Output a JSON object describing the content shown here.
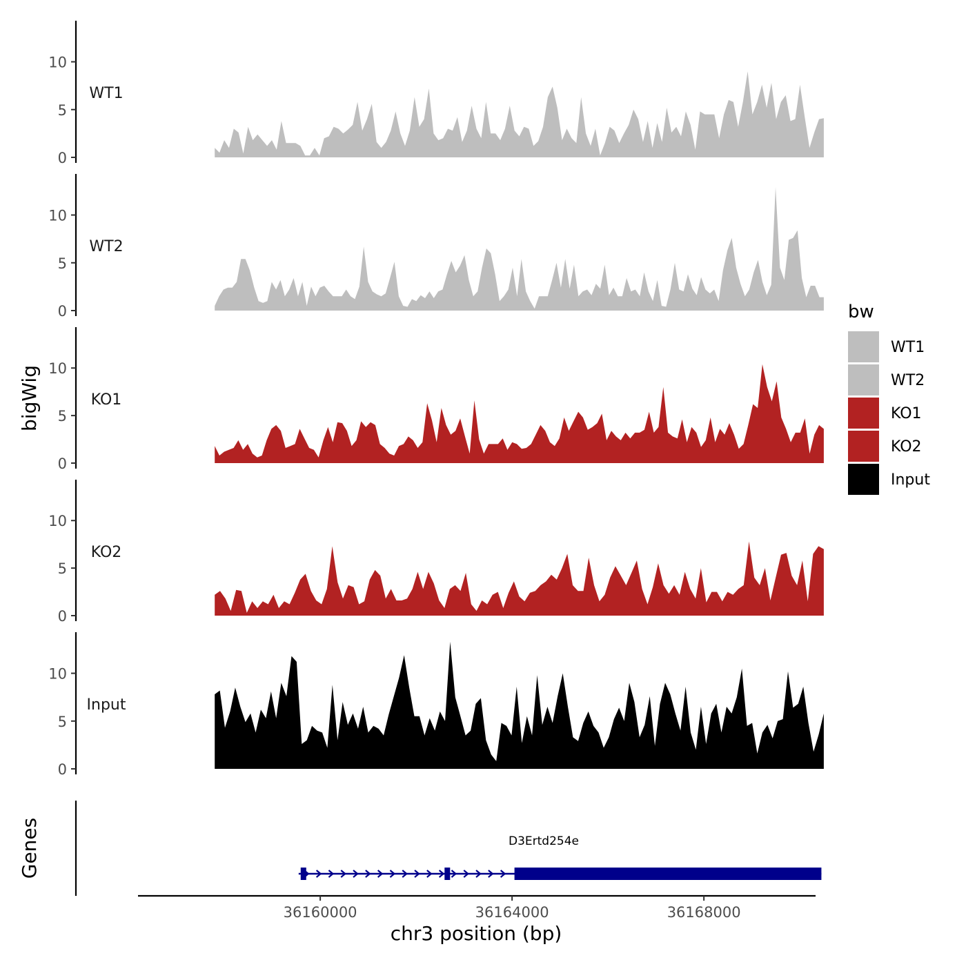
{
  "chart_data": {
    "type": "area",
    "title": "",
    "ylabel": "bigWig",
    "xlabel": "chr3 position (bp)",
    "xlim": [
      36156200,
      36170300
    ],
    "x_start": 36157800,
    "x_end": 36170500,
    "ylim": [
      0,
      14.3
    ],
    "y_ticks": [
      0,
      5,
      10
    ],
    "y_tick_labels": [
      "0",
      "5",
      "10"
    ],
    "x_ticks": [
      36160000,
      36164000,
      36168000
    ],
    "x_tick_labels": [
      "36160000",
      "36164000",
      "36168000"
    ],
    "legend": {
      "title": "bw",
      "placement": "right",
      "entries": [
        {
          "label": "WT1",
          "color": "#bebebe"
        },
        {
          "label": "WT2",
          "color": "#bebebe"
        },
        {
          "label": "KO1",
          "color": "#b22222"
        },
        {
          "label": "KO2",
          "color": "#b22222"
        },
        {
          "label": "Input",
          "color": "#000000"
        }
      ]
    },
    "series": [
      {
        "name": "WT1",
        "color": "#bebebe",
        "values": [
          1,
          0.5,
          1.8,
          1,
          3,
          2.6,
          0.4,
          3.2,
          1.8,
          2.4,
          1.8,
          1.2,
          1.8,
          0.8,
          3.8,
          1.5,
          1.5,
          1.5,
          1.2,
          0.2,
          0.2,
          1,
          0.2,
          2,
          2.2,
          3.2,
          3,
          2.5,
          2.9,
          3.4,
          5.8,
          2.8,
          4,
          5.6,
          1.6,
          1,
          1.6,
          2.8,
          4.8,
          2.5,
          1.2,
          2.8,
          6.3,
          3.2,
          4,
          7.2,
          2.5,
          1.8,
          2,
          3,
          2.8,
          4.2,
          1.6,
          2.8,
          5.4,
          3,
          2,
          5.8,
          2.5,
          2.5,
          1.8,
          3,
          5.4,
          2.8,
          2.2,
          3.2,
          3,
          1.2,
          1.7,
          3.2,
          6.3,
          7.4,
          5.2,
          1.8,
          3,
          2,
          1.5,
          6.3,
          2.5,
          1.2,
          3,
          0.2,
          1.5,
          3.2,
          2.8,
          1.5,
          2.5,
          3.4,
          5,
          4,
          1.6,
          3.8,
          1,
          3.6,
          1.6,
          5.2,
          2.6,
          3.2,
          2.2,
          4.8,
          3.4,
          0.8,
          4.8,
          4.5,
          4.5,
          4.5,
          2,
          4.5,
          6,
          5.8,
          3.2,
          5.8,
          9,
          4.5,
          5.8,
          7.6,
          5.2,
          7.8,
          4,
          5.8,
          6.5,
          3.8,
          4,
          7.6,
          4.2,
          1,
          2.6,
          4,
          4.1
        ]
      },
      {
        "name": "WT2",
        "color": "#bebebe",
        "values": [
          0.5,
          1.5,
          2.2,
          2.4,
          2.4,
          3,
          5.4,
          5.4,
          4.2,
          2.4,
          1,
          0.8,
          1,
          3,
          2.2,
          3.2,
          1.5,
          2.2,
          3.4,
          1.5,
          3,
          0.5,
          2.5,
          1.5,
          2.4,
          2.6,
          2,
          1.5,
          1.5,
          1.5,
          2.2,
          1.5,
          1.2,
          2.5,
          6.7,
          3,
          2,
          1.7,
          1.5,
          1.8,
          3.4,
          5.1,
          1.5,
          0.5,
          0.4,
          1.2,
          1,
          1.6,
          1.3,
          2,
          1.3,
          2,
          2.2,
          3.8,
          5.2,
          4,
          4.7,
          5.8,
          3.2,
          1.5,
          2,
          4.5,
          6.5,
          6,
          3.8,
          1,
          1.5,
          2.2,
          4.5,
          1.5,
          5.4,
          2,
          1,
          0.2,
          1.5,
          1.5,
          1.5,
          3.2,
          5,
          2.4,
          5.4,
          2.3,
          4.8,
          1.5,
          2,
          2.2,
          1.6,
          2.8,
          2.3,
          4.8,
          1.6,
          2.4,
          1.5,
          1.5,
          3.4,
          2,
          2.2,
          1.5,
          4,
          2,
          1,
          3.2,
          0.5,
          0.4,
          2.2,
          5,
          2.2,
          2,
          3.8,
          2.3,
          1.6,
          3.5,
          2.2,
          1.8,
          2.2,
          1,
          4.2,
          6.3,
          7.6,
          4.5,
          2.8,
          1.5,
          2.2,
          4,
          5.3,
          3,
          1.6,
          2.7,
          12.9,
          4.5,
          3.2,
          7.4,
          7.6,
          8.4,
          3.4,
          1.4,
          2.6,
          2.6,
          1.4,
          1.4
        ]
      },
      {
        "name": "KO1",
        "color": "#b22222",
        "values": [
          1.8,
          0.8,
          1.2,
          1.4,
          1.6,
          2.4,
          1.4,
          2,
          1,
          0.6,
          0.8,
          2.4,
          3.6,
          4,
          3.4,
          1.6,
          1.8,
          2,
          3.6,
          2.6,
          1.6,
          1.4,
          0.6,
          2.4,
          3.8,
          2.2,
          4.3,
          4.2,
          3.4,
          1.8,
          2.4,
          4.4,
          3.8,
          4.3,
          4,
          2,
          1.6,
          1,
          0.8,
          1.8,
          2,
          2.8,
          2.4,
          1.6,
          2.2,
          6.3,
          4.5,
          2.2,
          5.8,
          4,
          3,
          3.4,
          4.7,
          2.8,
          1,
          6.6,
          2.5,
          1,
          2,
          2,
          2,
          2.6,
          1.4,
          2.2,
          2,
          1.5,
          1.6,
          2,
          3,
          4,
          3.4,
          2.2,
          1.8,
          2.6,
          4.8,
          3.4,
          4.4,
          5.4,
          4.8,
          3.5,
          3.8,
          4.2,
          5.2,
          2.4,
          3.4,
          2.8,
          2.4,
          3.2,
          2.6,
          3.2,
          3.2,
          3.5,
          5.4,
          3.2,
          3.8,
          8,
          3.2,
          2.8,
          2.6,
          4.6,
          2.2,
          3.8,
          3.2,
          1.7,
          2.4,
          4.8,
          2.2,
          3.6,
          3,
          4.2,
          3,
          1.5,
          2,
          4,
          6.2,
          5.8,
          10.4,
          8,
          6.5,
          8.6,
          4.8,
          3.6,
          2.2,
          3.2,
          3.2,
          4.7,
          1,
          3,
          4,
          3.6
        ]
      },
      {
        "name": "KO2",
        "color": "#b22222",
        "values": [
          2.2,
          2.6,
          1.8,
          0.5,
          2.7,
          2.6,
          0.3,
          1.5,
          0.8,
          1.5,
          1.2,
          2.2,
          0.8,
          1.5,
          1.2,
          2.4,
          3.8,
          4.4,
          2.6,
          1.6,
          1.2,
          2.8,
          7.3,
          3.5,
          1.8,
          3.2,
          3,
          1.2,
          1.5,
          3.8,
          4.8,
          4.2,
          1.8,
          2.8,
          1.6,
          1.6,
          1.8,
          2.8,
          4.6,
          2.8,
          4.6,
          3.4,
          1.6,
          0.8,
          2.8,
          3.2,
          2.6,
          4.5,
          1.2,
          0.5,
          1.6,
          1.2,
          2.2,
          2.5,
          0.8,
          2.4,
          3.6,
          2,
          1.5,
          2.4,
          2.6,
          3.2,
          3.6,
          4.3,
          3.8,
          5,
          6.5,
          3.2,
          2.6,
          2.6,
          6.1,
          3.2,
          1.5,
          2.2,
          4,
          5.2,
          4.2,
          3.2,
          4.5,
          5.8,
          2.8,
          1.2,
          3,
          5.5,
          3.2,
          2.3,
          3.2,
          2.2,
          4.6,
          2.8,
          1.8,
          5,
          1.4,
          2.5,
          2.5,
          1.5,
          2.5,
          2.2,
          2.8,
          3.2,
          7.8,
          4,
          3.2,
          5,
          1.6,
          4,
          6.4,
          6.6,
          4.2,
          3.2,
          5.8,
          1.5,
          6.5,
          7.3,
          7
        ]
      },
      {
        "name": "Input",
        "color": "#000000",
        "values": [
          7.8,
          8.2,
          4.3,
          6,
          8.5,
          6.5,
          4.9,
          5.8,
          3.8,
          6.2,
          5.3,
          8.1,
          5.3,
          9,
          7.6,
          11.8,
          11.2,
          2.6,
          3,
          4.5,
          4,
          3.8,
          2.2,
          8.8,
          3,
          7,
          4.6,
          5.8,
          4.2,
          6.5,
          3.8,
          4.5,
          4.2,
          3.5,
          5.7,
          7.6,
          9.5,
          11.9,
          8.5,
          5.5,
          5.5,
          3.5,
          5.3,
          4,
          6,
          5,
          13.3,
          7.5,
          5.5,
          3.5,
          4,
          6.8,
          7.4,
          3,
          1.5,
          0.8,
          4.8,
          4.5,
          3.5,
          8.6,
          2.7,
          5.5,
          3.5,
          9.8,
          4.6,
          6.5,
          4.8,
          7.6,
          10,
          6.5,
          3.3,
          2.9,
          4.8,
          6,
          4.5,
          3.8,
          2.2,
          3.3,
          5.2,
          6.4,
          5,
          9,
          7,
          3.3,
          4.6,
          7.6,
          2.4,
          6.8,
          9,
          7.8,
          5.8,
          4,
          8.6,
          3.8,
          2,
          6.5,
          2.6,
          5.8,
          6.8,
          3.8,
          6.5,
          5.8,
          7.5,
          10.5,
          4.5,
          4.8,
          1.6,
          3.8,
          4.6,
          3.2,
          5,
          5.2,
          10.2,
          6.4,
          6.8,
          8.6,
          4.8,
          1.8,
          3.6,
          5.8
        ]
      }
    ],
    "genes_track": {
      "label": "Genes",
      "genes": [
        {
          "name": "D3Ertd254e",
          "start": 36159550,
          "end": 36170450,
          "thick_start": 36164050,
          "exons": [
            36159650,
            36162650
          ]
        }
      ]
    }
  }
}
